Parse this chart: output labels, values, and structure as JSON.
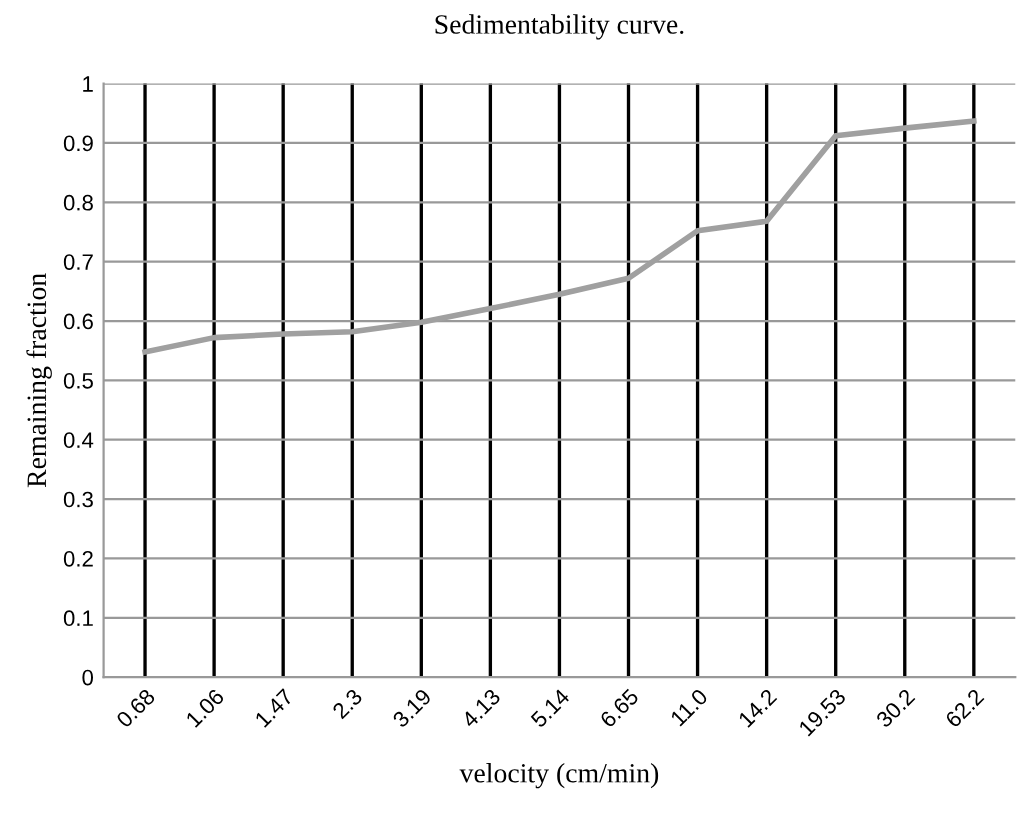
{
  "chart_data": {
    "type": "line",
    "title": "Sedimentability curve.",
    "xlabel": "velocity (cm/min)",
    "ylabel": "Remaining fraction",
    "categories": [
      "0.68",
      "1.06",
      "1.47",
      "2.3",
      "3.19",
      "4.13",
      "5.14",
      "6.65",
      "11.0",
      "14.2",
      "19.53",
      "30.2",
      "62.2"
    ],
    "series": [
      {
        "color": "#a0a0a0",
        "values": [
          0.548,
          0.572,
          0.578,
          0.582,
          0.598,
          0.621,
          0.645,
          0.672,
          0.752,
          0.768,
          0.912,
          0.925,
          0.937
        ]
      }
    ],
    "ylim": [
      0,
      1
    ],
    "yticks": [
      0,
      0.1,
      0.2,
      0.3,
      0.4,
      0.5,
      0.6,
      0.7,
      0.8,
      0.9,
      1
    ],
    "grid": true,
    "marker": "none",
    "line_style": "solid",
    "legend": false
  }
}
